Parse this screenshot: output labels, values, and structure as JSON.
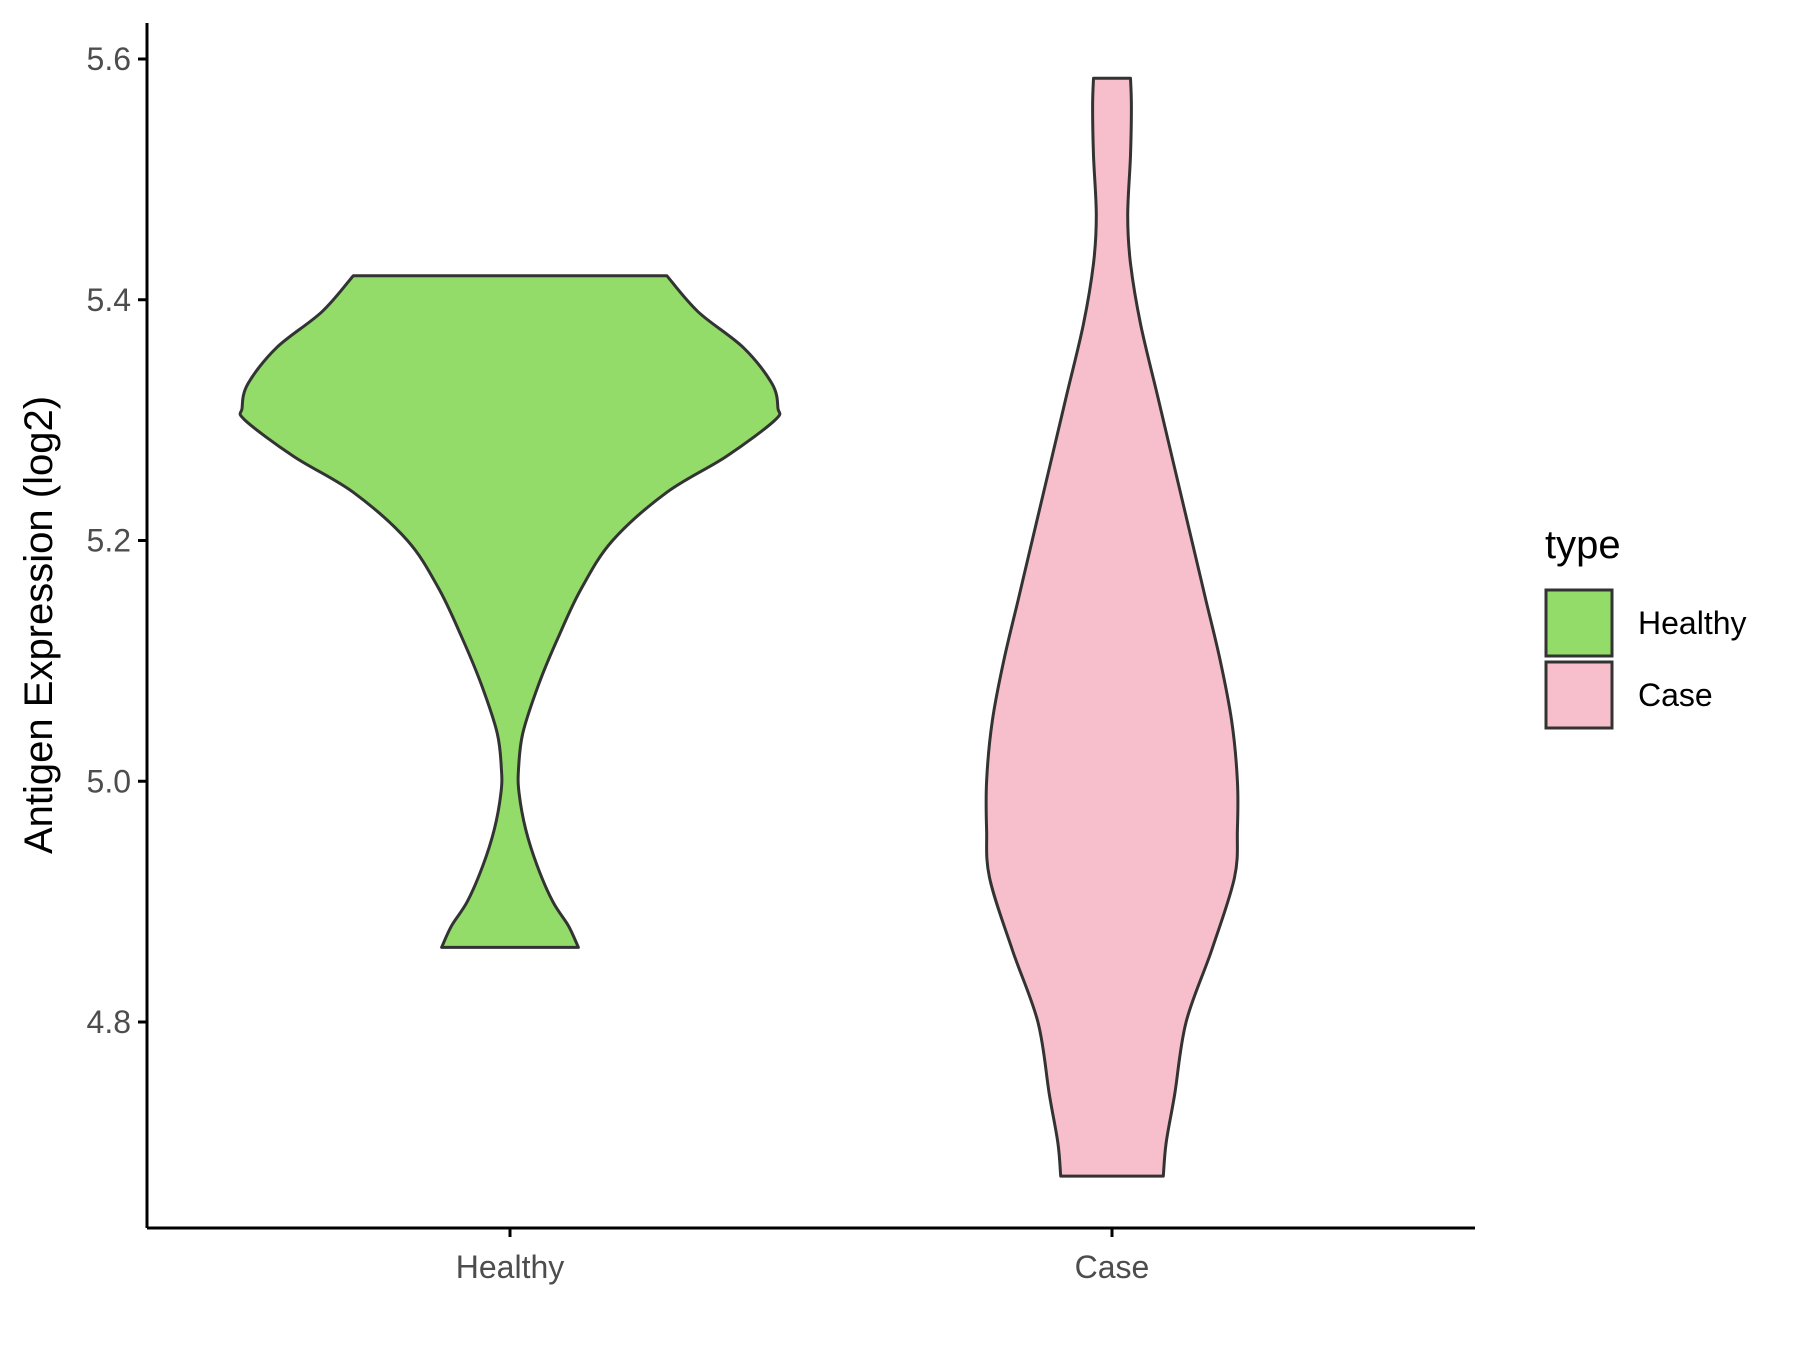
{
  "chart_data": {
    "type": "violin",
    "ylabel": "Antigen Expression (log2)",
    "xlabel": "",
    "categories": [
      "Healthy",
      "Case"
    ],
    "y_ticks": [
      "4.8",
      "5.0",
      "5.2",
      "5.4",
      "5.6"
    ],
    "y_tick_values": [
      4.8,
      5.0,
      5.2,
      5.4,
      5.6
    ],
    "ylim": [
      4.63,
      5.63
    ],
    "legend": {
      "title": "type",
      "position": "right",
      "entries": [
        "Healthy",
        "Case"
      ]
    },
    "grid": false,
    "series": [
      {
        "name": "Healthy",
        "color": "#93dc6a",
        "y_min": 4.862,
        "y_max": 5.42,
        "profile": [
          [
            4.862,
            0.24
          ],
          [
            4.88,
            0.205
          ],
          [
            4.9,
            0.15
          ],
          [
            4.93,
            0.095
          ],
          [
            4.96,
            0.055
          ],
          [
            4.99,
            0.032
          ],
          [
            5.01,
            0.03
          ],
          [
            5.04,
            0.045
          ],
          [
            5.08,
            0.1
          ],
          [
            5.12,
            0.17
          ],
          [
            5.16,
            0.25
          ],
          [
            5.2,
            0.36
          ],
          [
            5.24,
            0.55
          ],
          [
            5.27,
            0.76
          ],
          [
            5.3,
            0.93
          ],
          [
            5.31,
            0.94
          ],
          [
            5.33,
            0.92
          ],
          [
            5.36,
            0.82
          ],
          [
            5.39,
            0.66
          ],
          [
            5.42,
            0.55
          ]
        ]
      },
      {
        "name": "Case",
        "color": "#f7bfcb",
        "y_min": 4.672,
        "y_max": 5.584,
        "profile": [
          [
            4.672,
            0.18
          ],
          [
            4.7,
            0.19
          ],
          [
            4.74,
            0.22
          ],
          [
            4.8,
            0.26
          ],
          [
            4.86,
            0.35
          ],
          [
            4.92,
            0.43
          ],
          [
            4.96,
            0.44
          ],
          [
            5.0,
            0.44
          ],
          [
            5.05,
            0.42
          ],
          [
            5.1,
            0.38
          ],
          [
            5.15,
            0.33
          ],
          [
            5.2,
            0.28
          ],
          [
            5.26,
            0.22
          ],
          [
            5.32,
            0.16
          ],
          [
            5.38,
            0.1
          ],
          [
            5.43,
            0.065
          ],
          [
            5.47,
            0.055
          ],
          [
            5.52,
            0.065
          ],
          [
            5.56,
            0.068
          ],
          [
            5.584,
            0.065
          ]
        ]
      }
    ]
  }
}
